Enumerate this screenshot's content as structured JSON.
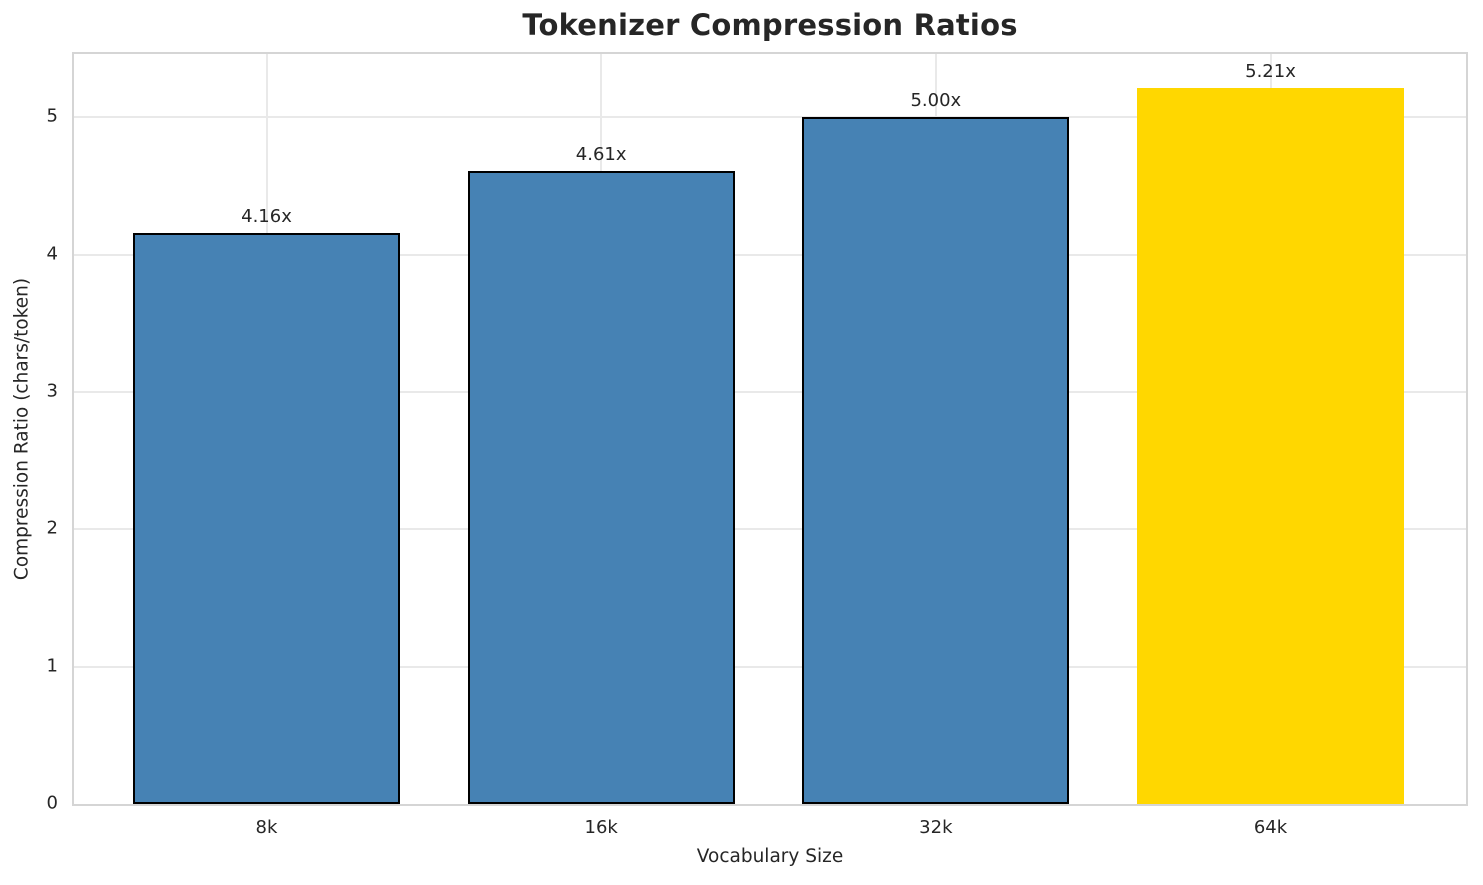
{
  "chart_data": {
    "type": "bar",
    "title": "Tokenizer Compression Ratios",
    "xlabel": "Vocabulary Size",
    "ylabel": "Compression Ratio (chars/token)",
    "categories": [
      "8k",
      "16k",
      "32k",
      "64k"
    ],
    "values": [
      4.16,
      4.61,
      5.0,
      5.21
    ],
    "bar_labels": [
      "4.16x",
      "4.61x",
      "5.00x",
      "5.21x"
    ],
    "bar_colors": [
      "#4682B4",
      "#4682B4",
      "#4682B4",
      "#FFD700"
    ],
    "bar_edge_colors": [
      "#000000",
      "#000000",
      "#000000",
      "none"
    ],
    "highlight_index": 3,
    "yticks": [
      0,
      1,
      2,
      3,
      4,
      5
    ],
    "ytick_labels": [
      "0",
      "1",
      "2",
      "3",
      "4",
      "5"
    ],
    "ylim": [
      0,
      5.46
    ],
    "grid": true,
    "legend": false
  },
  "colors": {
    "bar_default": "#4682B4",
    "bar_highlight": "#FFD700",
    "bar_edge": "#000000",
    "grid_line": "#e9e9e9",
    "spine": "#d5d5d5",
    "text": "#262626",
    "background": "#ffffff"
  }
}
